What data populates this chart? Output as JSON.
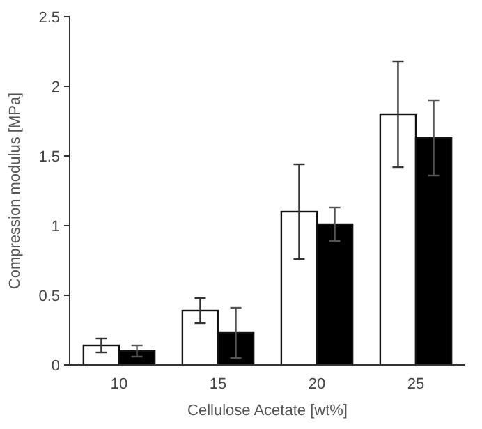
{
  "chart_data": {
    "type": "bar",
    "xlabel": "Cellulose Acetate [wt%]",
    "ylabel": "Compression modulus [MPa]",
    "categories": [
      "10",
      "15",
      "20",
      "25"
    ],
    "series": [
      {
        "color": "#ffffff",
        "values": [
          0.14,
          0.39,
          1.1,
          1.8
        ],
        "errors": [
          0.05,
          0.09,
          0.34,
          0.38
        ]
      },
      {
        "color": "#000000",
        "values": [
          0.1,
          0.23,
          1.01,
          1.63
        ],
        "errors": [
          0.04,
          0.18,
          0.12,
          0.27
        ]
      }
    ],
    "ylim": [
      0,
      2.5
    ],
    "yticks": [
      0,
      0.5,
      1,
      1.5,
      2,
      2.5
    ],
    "grid": false
  }
}
